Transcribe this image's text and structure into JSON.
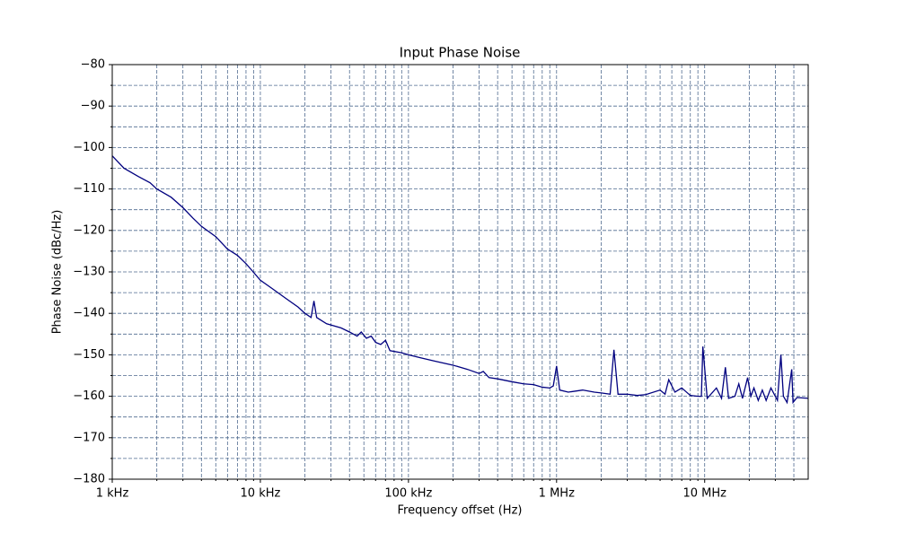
{
  "chart_data": {
    "type": "line",
    "title": "Input Phase Noise",
    "xlabel": "Frequency offset (Hz)",
    "ylabel": "Phase Noise (dBc/Hz)",
    "xscale": "log",
    "grid": true,
    "color": "#00007f",
    "xlim": [
      1000,
      50000000
    ],
    "ylim": [
      -180,
      -80
    ],
    "xticks": [
      {
        "value": 1000,
        "label": "1 kHz"
      },
      {
        "value": 10000,
        "label": "10 kHz"
      },
      {
        "value": 100000,
        "label": "100 kHz"
      },
      {
        "value": 1000000,
        "label": "1 MHz"
      },
      {
        "value": 10000000,
        "label": "10 MHz"
      }
    ],
    "xticks_minor": [
      2000,
      3000,
      4000,
      5000,
      6000,
      7000,
      8000,
      9000,
      20000,
      30000,
      40000,
      50000,
      60000,
      70000,
      80000,
      90000,
      200000,
      300000,
      400000,
      500000,
      600000,
      700000,
      800000,
      900000,
      2000000,
      3000000,
      4000000,
      5000000,
      6000000,
      7000000,
      8000000,
      9000000,
      20000000,
      30000000,
      40000000
    ],
    "yticks": [
      {
        "value": -80,
        "label": "−80"
      },
      {
        "value": -90,
        "label": "−90"
      },
      {
        "value": -100,
        "label": "−100"
      },
      {
        "value": -110,
        "label": "−110"
      },
      {
        "value": -120,
        "label": "−120"
      },
      {
        "value": -130,
        "label": "−130"
      },
      {
        "value": -140,
        "label": "−140"
      },
      {
        "value": -150,
        "label": "−150"
      },
      {
        "value": -160,
        "label": "−160"
      },
      {
        "value": -170,
        "label": "−170"
      },
      {
        "value": -180,
        "label": "−180"
      }
    ],
    "yticks_minor": [
      -85,
      -95,
      -105,
      -115,
      -125,
      -135,
      -145,
      -155,
      -165,
      -175
    ],
    "x": [
      1000,
      1200,
      1500,
      1800,
      2000,
      2500,
      3000,
      3500,
      4000,
      5000,
      6000,
      7000,
      8000,
      10000,
      12000,
      15000,
      18000,
      20000,
      22000,
      23000,
      24000,
      28000,
      35000,
      40000,
      45000,
      48000,
      52000,
      56000,
      60000,
      65000,
      70000,
      75000,
      90000,
      100000,
      120000,
      150000,
      200000,
      250000,
      300000,
      320000,
      350000,
      400000,
      500000,
      600000,
      700000,
      800000,
      900000,
      950000,
      1000000,
      1050000,
      1200000,
      1500000,
      1800000,
      2000000,
      2300000,
      2440000,
      2600000,
      3000000,
      3500000,
      4000000,
      5000000,
      5400000,
      5720000,
      6300000,
      7000000,
      8000000,
      9000000,
      9500000,
      9720000,
      10400000,
      12000000,
      13000000,
      13800000,
      14500000,
      16000000,
      17000000,
      18000000,
      19500000,
      20500000,
      21500000,
      23000000,
      24500000,
      26000000,
      28000000,
      31000000,
      32700000,
      34000000,
      36000000,
      38700000,
      39500000,
      42000000,
      50000000
    ],
    "values": [
      -102,
      -105,
      -107,
      -108.5,
      -110,
      -112,
      -114.5,
      -117,
      -119,
      -121.5,
      -124.5,
      -126,
      -128,
      -132,
      -134,
      -136.5,
      -138.5,
      -140,
      -141,
      -137,
      -141,
      -142.5,
      -143.5,
      -144.5,
      -145.5,
      -144.5,
      -146,
      -145.5,
      -147,
      -147.5,
      -146.5,
      -149,
      -149.5,
      -150,
      -150.7,
      -151.5,
      -152.5,
      -153.5,
      -154.5,
      -154,
      -155.5,
      -155.8,
      -156.5,
      -157,
      -157.2,
      -157.8,
      -158,
      -157.5,
      -152.7,
      -158.5,
      -159,
      -158.5,
      -159,
      -159.2,
      -159.5,
      -148.8,
      -159.5,
      -159.5,
      -159.8,
      -159.6,
      -158.5,
      -159.5,
      -156,
      -159,
      -158,
      -159.8,
      -160,
      -160,
      -148,
      -160.5,
      -158,
      -160.5,
      -153,
      -160.5,
      -160,
      -157,
      -160.5,
      -155.5,
      -160,
      -158,
      -161,
      -158.5,
      -161,
      -158,
      -161,
      -150,
      -160,
      -161.5,
      -153.5,
      -161.5,
      -160.3,
      -160.5
    ]
  }
}
